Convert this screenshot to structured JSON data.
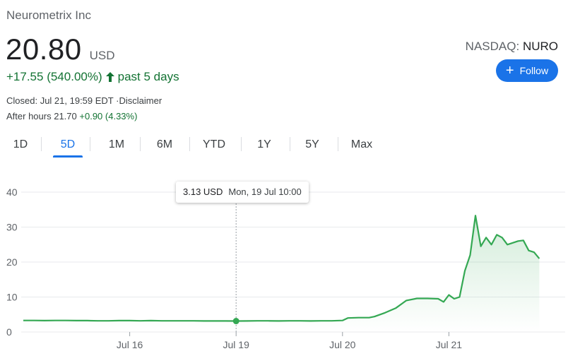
{
  "company": "Neurometrix Inc",
  "price": "20.80",
  "currency": "USD",
  "change": "+17.55 (540.00%)",
  "period": "past 5 days",
  "closed": "Closed: Jul 21, 19:59 EDT",
  "disclaimer": "Disclaimer",
  "after_hours_label": "After hours",
  "after_hours_price": "21.70",
  "after_hours_change": "+0.90 (4.33%)",
  "exchange": "NASDAQ:",
  "ticker": "NURO",
  "follow_label": "Follow",
  "tabs": [
    "1D",
    "5D",
    "1M",
    "6M",
    "YTD",
    "1Y",
    "5Y",
    "Max"
  ],
  "active_tab": "5D",
  "colors": {
    "up": "#137333",
    "accent": "#1a73e8",
    "line": "#34a853"
  },
  "icons": {
    "change_arrow": "arrow-up-icon",
    "follow": "plus-icon"
  },
  "tooltip": {
    "value": "3.13 USD",
    "date": "Mon, 19 Jul 10:00"
  },
  "chart_data": {
    "type": "area",
    "title": "",
    "xlabel": "",
    "ylabel": "",
    "ylim": [
      0,
      40
    ],
    "yticks": [
      0,
      10,
      20,
      30,
      40
    ],
    "xlim": [
      0,
      5
    ],
    "xticks": [
      {
        "x": 1,
        "label": "Jul 16"
      },
      {
        "x": 2,
        "label": "Jul 19"
      },
      {
        "x": 3,
        "label": "Jul 20"
      },
      {
        "x": 4,
        "label": "Jul 21"
      }
    ],
    "grid": true,
    "series": [
      {
        "points": [
          [
            0.0,
            3.3
          ],
          [
            0.1,
            3.3
          ],
          [
            0.2,
            3.25
          ],
          [
            0.3,
            3.3
          ],
          [
            0.4,
            3.3
          ],
          [
            0.5,
            3.25
          ],
          [
            0.6,
            3.25
          ],
          [
            0.7,
            3.2
          ],
          [
            0.8,
            3.2
          ],
          [
            0.9,
            3.25
          ],
          [
            1.0,
            3.25
          ],
          [
            1.1,
            3.2
          ],
          [
            1.2,
            3.25
          ],
          [
            1.3,
            3.2
          ],
          [
            1.4,
            3.2
          ],
          [
            1.5,
            3.2
          ],
          [
            1.6,
            3.2
          ],
          [
            1.7,
            3.15
          ],
          [
            1.8,
            3.15
          ],
          [
            1.9,
            3.15
          ],
          [
            2.0,
            3.13
          ],
          [
            2.1,
            3.15
          ],
          [
            2.2,
            3.2
          ],
          [
            2.3,
            3.2
          ],
          [
            2.4,
            3.15
          ],
          [
            2.5,
            3.2
          ],
          [
            2.6,
            3.2
          ],
          [
            2.7,
            3.15
          ],
          [
            2.8,
            3.2
          ],
          [
            2.9,
            3.2
          ],
          [
            3.0,
            3.3
          ],
          [
            3.05,
            4.0
          ],
          [
            3.15,
            4.1
          ],
          [
            3.25,
            4.1
          ],
          [
            3.3,
            4.4
          ],
          [
            3.4,
            5.5
          ],
          [
            3.5,
            6.8
          ],
          [
            3.6,
            9.0
          ],
          [
            3.7,
            9.6
          ],
          [
            3.8,
            9.6
          ],
          [
            3.9,
            9.5
          ],
          [
            3.95,
            8.6
          ],
          [
            4.0,
            10.6
          ],
          [
            4.05,
            9.5
          ],
          [
            4.1,
            10.0
          ],
          [
            4.15,
            17.5
          ],
          [
            4.2,
            22.0
          ],
          [
            4.25,
            33.3
          ],
          [
            4.3,
            24.5
          ],
          [
            4.35,
            27.0
          ],
          [
            4.4,
            25.0
          ],
          [
            4.45,
            27.8
          ],
          [
            4.5,
            27.0
          ],
          [
            4.55,
            25.0
          ],
          [
            4.65,
            26.0
          ],
          [
            4.7,
            26.2
          ],
          [
            4.75,
            23.3
          ],
          [
            4.8,
            22.8
          ],
          [
            4.85,
            21.0
          ]
        ]
      }
    ],
    "highlight": {
      "x": 2.0,
      "y": 3.13
    }
  }
}
